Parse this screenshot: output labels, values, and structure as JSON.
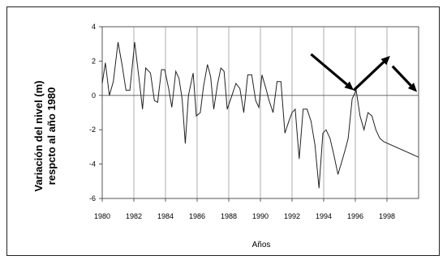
{
  "chart_data": {
    "type": "line",
    "title": "",
    "xlabel": "Años",
    "ylabel_lines": [
      "Variación del nivel (m)",
      "respcto al año 1980"
    ],
    "xlim": [
      1980,
      2000
    ],
    "ylim": [
      -6,
      4
    ],
    "x_ticks": [
      1980,
      1982,
      1984,
      1986,
      1988,
      1990,
      1992,
      1994,
      1996,
      1998
    ],
    "y_ticks": [
      4,
      2,
      0,
      -2,
      -4,
      -6
    ],
    "grid": {
      "vertical": true,
      "horizontal": false
    },
    "series": [
      {
        "points": [
          [
            1980.0,
            0.7
          ],
          [
            1980.2,
            1.9
          ],
          [
            1980.45,
            0.0
          ],
          [
            1980.7,
            0.8
          ],
          [
            1981.0,
            3.1
          ],
          [
            1981.25,
            1.8
          ],
          [
            1981.5,
            0.3
          ],
          [
            1981.75,
            0.3
          ],
          [
            1982.05,
            3.1
          ],
          [
            1982.35,
            0.8
          ],
          [
            1982.55,
            -0.8
          ],
          [
            1982.75,
            1.6
          ],
          [
            1983.05,
            1.3
          ],
          [
            1983.3,
            -0.3
          ],
          [
            1983.5,
            -0.4
          ],
          [
            1983.75,
            1.5
          ],
          [
            1983.95,
            1.5
          ],
          [
            1984.2,
            0.4
          ],
          [
            1984.4,
            -0.7
          ],
          [
            1984.65,
            1.4
          ],
          [
            1984.85,
            1.0
          ],
          [
            1985.05,
            -0.2
          ],
          [
            1985.25,
            -2.8
          ],
          [
            1985.45,
            0.0
          ],
          [
            1985.75,
            1.3
          ],
          [
            1985.95,
            -1.2
          ],
          [
            1986.2,
            -1.0
          ],
          [
            1986.4,
            0.5
          ],
          [
            1986.65,
            1.8
          ],
          [
            1986.85,
            1.1
          ],
          [
            1987.05,
            -0.8
          ],
          [
            1987.3,
            0.7
          ],
          [
            1987.5,
            1.6
          ],
          [
            1987.7,
            1.4
          ],
          [
            1987.9,
            -0.8
          ],
          [
            1988.2,
            0.0
          ],
          [
            1988.45,
            0.7
          ],
          [
            1988.7,
            0.4
          ],
          [
            1988.95,
            -1.0
          ],
          [
            1989.2,
            1.2
          ],
          [
            1989.45,
            1.2
          ],
          [
            1989.7,
            -0.3
          ],
          [
            1989.9,
            -0.7
          ],
          [
            1990.1,
            1.2
          ],
          [
            1990.35,
            0.4
          ],
          [
            1990.55,
            -0.3
          ],
          [
            1990.8,
            -1.0
          ],
          [
            1991.05,
            0.8
          ],
          [
            1991.3,
            0.8
          ],
          [
            1991.55,
            -2.2
          ],
          [
            1991.8,
            -1.5
          ],
          [
            1992.0,
            -1.0
          ],
          [
            1992.2,
            -0.8
          ],
          [
            1992.45,
            -3.7
          ],
          [
            1992.7,
            -0.8
          ],
          [
            1992.95,
            -0.8
          ],
          [
            1993.2,
            -1.5
          ],
          [
            1993.45,
            -2.9
          ],
          [
            1993.7,
            -5.4
          ],
          [
            1993.95,
            -2.2
          ],
          [
            1994.15,
            -2.0
          ],
          [
            1994.4,
            -2.5
          ],
          [
            1994.65,
            -3.5
          ],
          [
            1994.9,
            -4.6
          ],
          [
            1995.1,
            -4.0
          ],
          [
            1995.35,
            -3.2
          ],
          [
            1995.55,
            -2.5
          ],
          [
            1995.8,
            -0.2
          ],
          [
            1996.05,
            0.3
          ],
          [
            1996.3,
            -1.2
          ],
          [
            1996.55,
            -2.0
          ],
          [
            1996.8,
            -1.0
          ],
          [
            1997.05,
            -1.2
          ],
          [
            1997.3,
            -2.0
          ],
          [
            1997.55,
            -2.5
          ],
          [
            1997.8,
            -2.7
          ],
          [
            2000.0,
            -3.6
          ]
        ]
      }
    ],
    "annotations": [
      {
        "type": "arrow",
        "from": [
          1993.2,
          2.4
        ],
        "to": [
          1995.9,
          0.3
        ]
      },
      {
        "type": "arrow",
        "from": [
          1995.9,
          0.3
        ],
        "to": [
          1998.2,
          2.3
        ]
      },
      {
        "type": "arrow",
        "from": [
          1998.35,
          1.7
        ],
        "to": [
          1999.9,
          0.2
        ]
      }
    ]
  }
}
